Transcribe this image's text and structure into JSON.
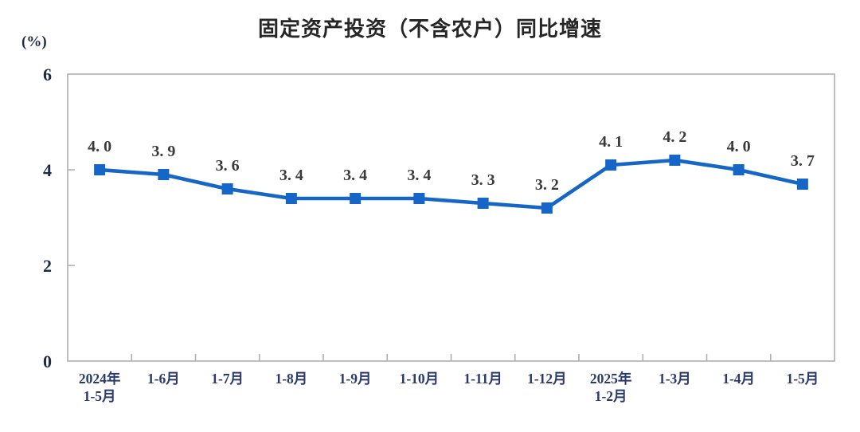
{
  "chart_data": {
    "type": "line",
    "title": "固定资产投资（不含农户）同比增速",
    "unit_label": "(%)",
    "xlabel": "",
    "ylabel": "(%)",
    "categories": [
      "2024年\n1-5月",
      "1-6月",
      "1-7月",
      "1-8月",
      "1-9月",
      "1-10月",
      "1-11月",
      "1-12月",
      "2025年\n1-2月",
      "1-3月",
      "1-4月",
      "1-5月"
    ],
    "values": [
      4.0,
      3.9,
      3.6,
      3.4,
      3.4,
      3.4,
      3.3,
      3.2,
      4.1,
      4.2,
      4.0,
      3.7
    ],
    "point_labels": [
      "4. 0",
      "3. 9",
      "3. 6",
      "3. 4",
      "3. 4",
      "3. 4",
      "3. 3",
      "3. 2",
      "4. 1",
      "4. 2",
      "4. 0",
      "3. 7"
    ],
    "y_ticks": [
      0,
      2,
      4,
      6
    ],
    "ylim": [
      0,
      6
    ],
    "grid": false,
    "legend": "none",
    "marker": "square",
    "colors": {
      "line": "#1566C6",
      "marker": "#1566C6",
      "axis": "#AFAFAF",
      "y_tick_label": "#1F2A44",
      "x_tick_label": "#2B3A6E",
      "data_label": "#3A3A3A",
      "title": "#262626"
    }
  }
}
